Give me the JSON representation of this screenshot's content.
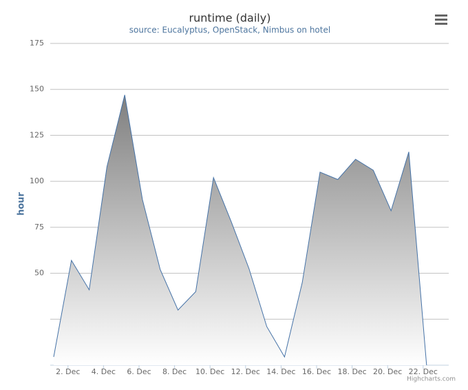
{
  "chart_data": {
    "type": "area",
    "title": "runtime (daily)",
    "subtitle": "source: Eucalyptus, OpenStack, Nimbus on hotel",
    "y_label": "hour",
    "credits": "Highcharts.com",
    "categories": [
      null,
      "2. Dec",
      null,
      "4. Dec",
      null,
      "6. Dec",
      null,
      "8. Dec",
      null,
      "10. Dec",
      null,
      "12. Dec",
      null,
      "14. Dec",
      null,
      "16. Dec",
      null,
      "18. Dec",
      null,
      "20. Dec",
      null,
      "22. Dec"
    ],
    "values": [
      4.5,
      57,
      41,
      108,
      147,
      90,
      52,
      30,
      40,
      102,
      78,
      52.5,
      21,
      4.5,
      45,
      105,
      101,
      112,
      106,
      84,
      116,
      0
    ],
    "color": "#4572a7",
    "ylim": [
      0,
      175
    ],
    "yticks": [
      {
        "value": 25,
        "label": null
      },
      50,
      75,
      100,
      125,
      150,
      175
    ],
    "grid": true
  }
}
